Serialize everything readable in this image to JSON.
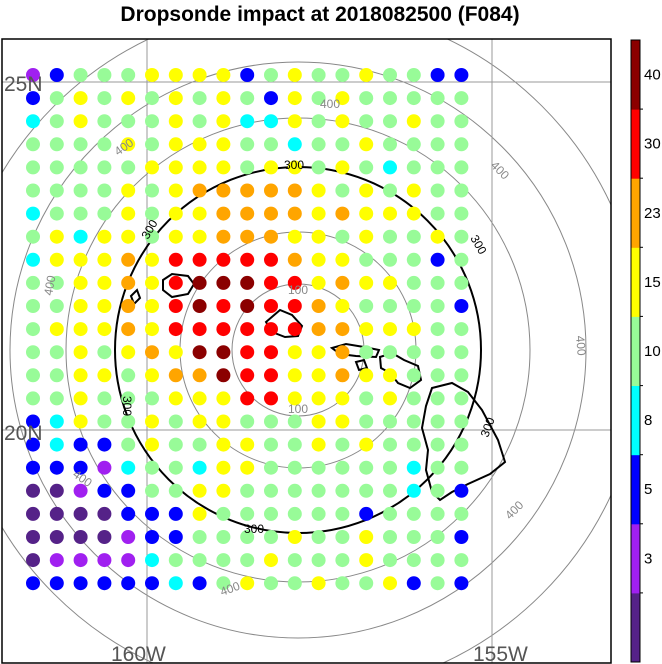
{
  "title": "Dropsonde impact at 2018082500 (F084)",
  "map": {
    "lat_labels": [
      "25N",
      "20N"
    ],
    "lon_labels": [
      "160W",
      "155W"
    ],
    "range_ring_labels": [
      "100",
      "300",
      "400"
    ]
  },
  "colorbar": {
    "tick_labels": [
      "3",
      "5",
      "8",
      "10",
      "15",
      "23",
      "30",
      "40"
    ],
    "colors": [
      "#552288",
      "#a020f0",
      "#0000ff",
      "#00ffff",
      "#98fb98",
      "#ffff00",
      "#ffa500",
      "#ff0000",
      "#8b0000"
    ]
  },
  "chart_data": {
    "type": "scatter",
    "title": "Dropsonde impact at 2018082500 (F084)",
    "color_levels": [
      3,
      5,
      8,
      10,
      15,
      23,
      30,
      40
    ],
    "rows": [
      "P6GGGYYYY6GYGGYGG66",
      "6GYGYGYGYG6YGYGGGGG",
      "8GYGGGYGY88YGYGGYGG",
      "GGGGYGYYYGG8GGYGGGG",
      "GGGGGYYYYGYYGYG8GGG",
      "GGGGYGYOOOOOYGYGYGG",
      "8GGGYGYYOOOOYOYYYGG",
      "GY8YYGYYOOOYYGYGGYG",
      "8YYYOYRRRRROYYGGG6G",
      "GGYYOYRMMMRRYOYYGGG",
      "GGYYOYRMRMRROYGGGG6",
      "GYYYOYRRRRRROOYYYGG",
      "GGYGYOYMMRRYYOGGGGG",
      "GGYYGYOOMRRYYOYYGGG",
      "GGYGGGYYYRRYYYGYGGG",
      "68YGGYGYYGGGYYGGGGG",
      "6866GYGGYYGGYGYGGGG",
      "666P8GG8YYGGGGGG8GG",
      "LLP66GGYYGGGGGGG8G6",
      "LLLL666YGGGGGG6GGGG",
      "LLLLP66GGGGYGGYGGG6",
      "LPPPP8GGGGYGGGYGGGG",
      "66666686GYGGYGGY6G6"
    ],
    "rows_key": {
      "L": "<3",
      "P": "3-5",
      "6": "5-8",
      "8": "8-10",
      "G": "10-15",
      "Y": "15-23",
      "O": "23-30",
      "R": "30-40",
      "M": ">40"
    }
  }
}
